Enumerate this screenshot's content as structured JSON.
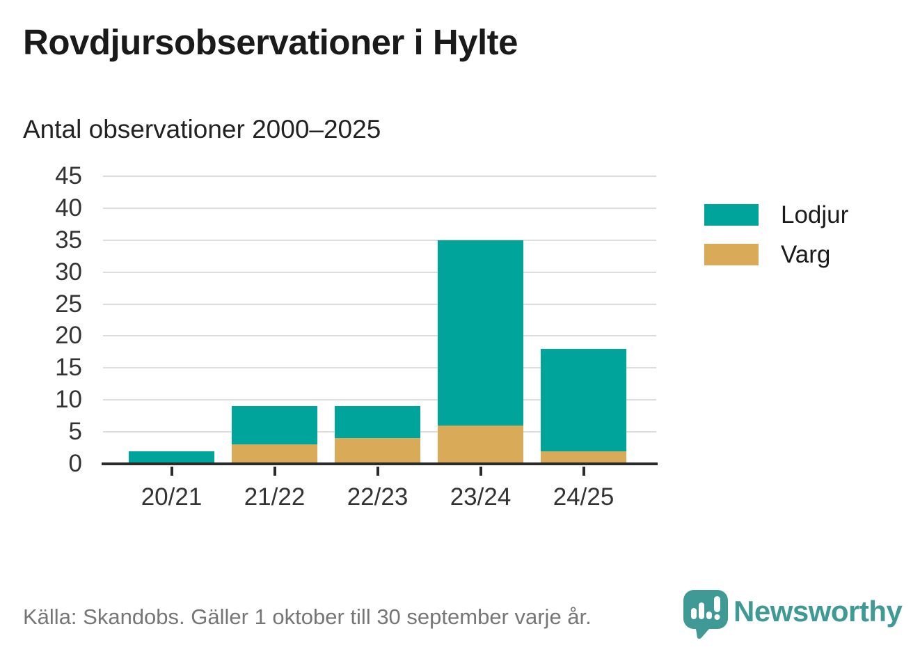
{
  "header": {
    "title": "Rovdjursobservationer i Hylte",
    "subtitle": "Antal observationer 2000–2025"
  },
  "footer": {
    "source_note": "Källa: Skandobs. Gäller 1 oktober till 30 september varje år."
  },
  "branding": {
    "wordmark": "Newsworthy",
    "logo_icon": "speech-bubble-bar-chart-exclamation-icon",
    "color": "#3f9a95"
  },
  "colors": {
    "lodjur": "#00a49a",
    "varg": "#d9ab58",
    "axis": "#2b2b2b",
    "grid": "#dddddd",
    "tick_label": "#333333",
    "title_text": "#1a1a1a",
    "footer_text": "#767676",
    "background": "#ffffff"
  },
  "legend": {
    "items": [
      {
        "label": "Lodjur",
        "color": "#00a49a"
      },
      {
        "label": "Varg",
        "color": "#d9ab58"
      }
    ]
  },
  "chart_data": {
    "type": "bar",
    "stacked": true,
    "title": "Rovdjursobservationer i Hylte",
    "subtitle": "Antal observationer 2000–2025",
    "xlabel": "",
    "ylabel": "",
    "categories": [
      "20/21",
      "21/22",
      "22/23",
      "23/24",
      "24/25"
    ],
    "series": [
      {
        "name": "Varg",
        "color": "#d9ab58",
        "values": [
          0,
          3,
          4,
          6,
          2
        ]
      },
      {
        "name": "Lodjur",
        "color": "#00a49a",
        "values": [
          2,
          6,
          5,
          29,
          16
        ]
      }
    ],
    "totals": [
      2,
      9,
      9,
      35,
      18
    ],
    "ylim": [
      0,
      45
    ],
    "yticks": [
      0,
      5,
      10,
      15,
      20,
      25,
      30,
      35,
      40,
      45
    ],
    "grid": true,
    "legend_position": "right",
    "source": "Källa: Skandobs. Gäller 1 oktober till 30 september varje år."
  }
}
